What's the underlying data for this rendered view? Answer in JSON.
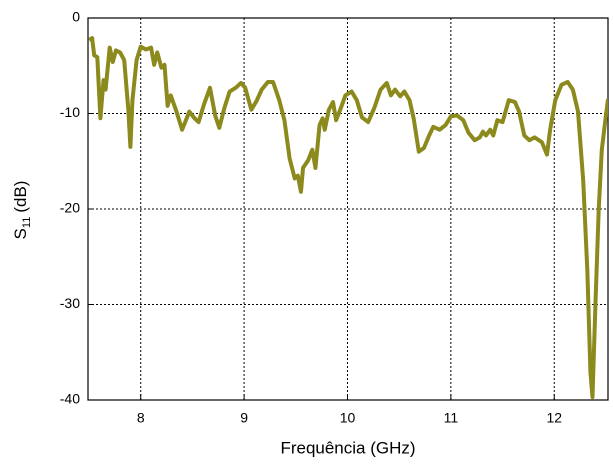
{
  "chart_data": {
    "type": "line",
    "x_label": "Frequência (GHz)",
    "y_label": "S",
    "y_label_subscript": "11",
    "y_label_unit": "(dB)",
    "xlim": [
      7.49,
      12.52
    ],
    "xticks": [
      8,
      9,
      10,
      11,
      12
    ],
    "ylim": [
      -40,
      0
    ],
    "yticks": [
      -40,
      -30,
      -20,
      -10,
      0
    ],
    "grid": true,
    "series": [
      {
        "color": "#8c8a1c",
        "x": [
          7.5,
          7.53,
          7.55,
          7.58,
          7.61,
          7.64,
          7.66,
          7.7,
          7.73,
          7.76,
          7.8,
          7.84,
          7.88,
          7.9,
          7.92,
          7.96,
          8.0,
          8.05,
          8.1,
          8.13,
          8.16,
          8.2,
          8.23,
          8.26,
          8.29,
          8.34,
          8.4,
          8.43,
          8.47,
          8.52,
          8.56,
          8.61,
          8.67,
          8.72,
          8.76,
          8.81,
          8.86,
          8.92,
          8.97,
          9.01,
          9.07,
          9.12,
          9.17,
          9.23,
          9.28,
          9.34,
          9.39,
          9.44,
          9.49,
          9.52,
          9.55,
          9.57,
          9.62,
          9.66,
          9.69,
          9.73,
          9.76,
          9.78,
          9.82,
          9.86,
          9.89,
          9.93,
          9.98,
          10.04,
          10.09,
          10.14,
          10.2,
          10.26,
          10.32,
          10.38,
          10.42,
          10.46,
          10.51,
          10.55,
          10.6,
          10.64,
          10.69,
          10.74,
          10.79,
          10.83,
          10.89,
          10.95,
          11.0,
          11.06,
          11.12,
          11.17,
          11.23,
          11.28,
          11.31,
          11.34,
          11.38,
          11.41,
          11.45,
          11.5,
          11.56,
          11.62,
          11.66,
          11.71,
          11.76,
          11.81,
          11.88,
          11.93,
          11.96,
          12.01,
          12.07,
          12.13,
          12.18,
          12.23,
          12.28,
          12.32,
          12.35,
          12.37,
          12.4,
          12.43,
          12.46,
          12.5,
          12.52
        ],
        "values": [
          -2.3,
          -2.1,
          -3.9,
          -4.1,
          -10.5,
          -6.5,
          -7.5,
          -3.1,
          -4.6,
          -3.4,
          -3.6,
          -4.4,
          -9.6,
          -13.5,
          -8.6,
          -4.4,
          -3.0,
          -3.3,
          -3.1,
          -4.9,
          -3.6,
          -5.2,
          -4.9,
          -9.2,
          -8.1,
          -9.6,
          -11.7,
          -10.9,
          -9.8,
          -10.5,
          -10.9,
          -9.1,
          -7.3,
          -10.2,
          -11.5,
          -9.4,
          -7.7,
          -7.3,
          -6.8,
          -7.3,
          -9.6,
          -8.7,
          -7.5,
          -6.7,
          -6.7,
          -8.6,
          -10.7,
          -14.7,
          -16.8,
          -16.5,
          -18.2,
          -15.7,
          -14.9,
          -13.8,
          -15.7,
          -11.2,
          -10.5,
          -11.7,
          -9.6,
          -8.8,
          -10.7,
          -9.6,
          -8.1,
          -7.7,
          -8.6,
          -10.4,
          -10.9,
          -9.4,
          -7.5,
          -6.8,
          -8.1,
          -7.5,
          -8.2,
          -7.7,
          -8.6,
          -10.5,
          -14.0,
          -13.6,
          -12.3,
          -11.4,
          -11.7,
          -11.2,
          -10.3,
          -10.2,
          -10.7,
          -12.0,
          -12.8,
          -12.5,
          -11.9,
          -12.3,
          -11.7,
          -12.3,
          -10.7,
          -10.9,
          -8.6,
          -8.8,
          -9.8,
          -12.3,
          -12.8,
          -12.5,
          -13.0,
          -14.3,
          -11.7,
          -8.6,
          -7.0,
          -6.7,
          -7.5,
          -9.8,
          -17.0,
          -26.4,
          -37.1,
          -39.7,
          -29.5,
          -20.1,
          -13.8,
          -10.2,
          -8.5
        ]
      }
    ]
  }
}
